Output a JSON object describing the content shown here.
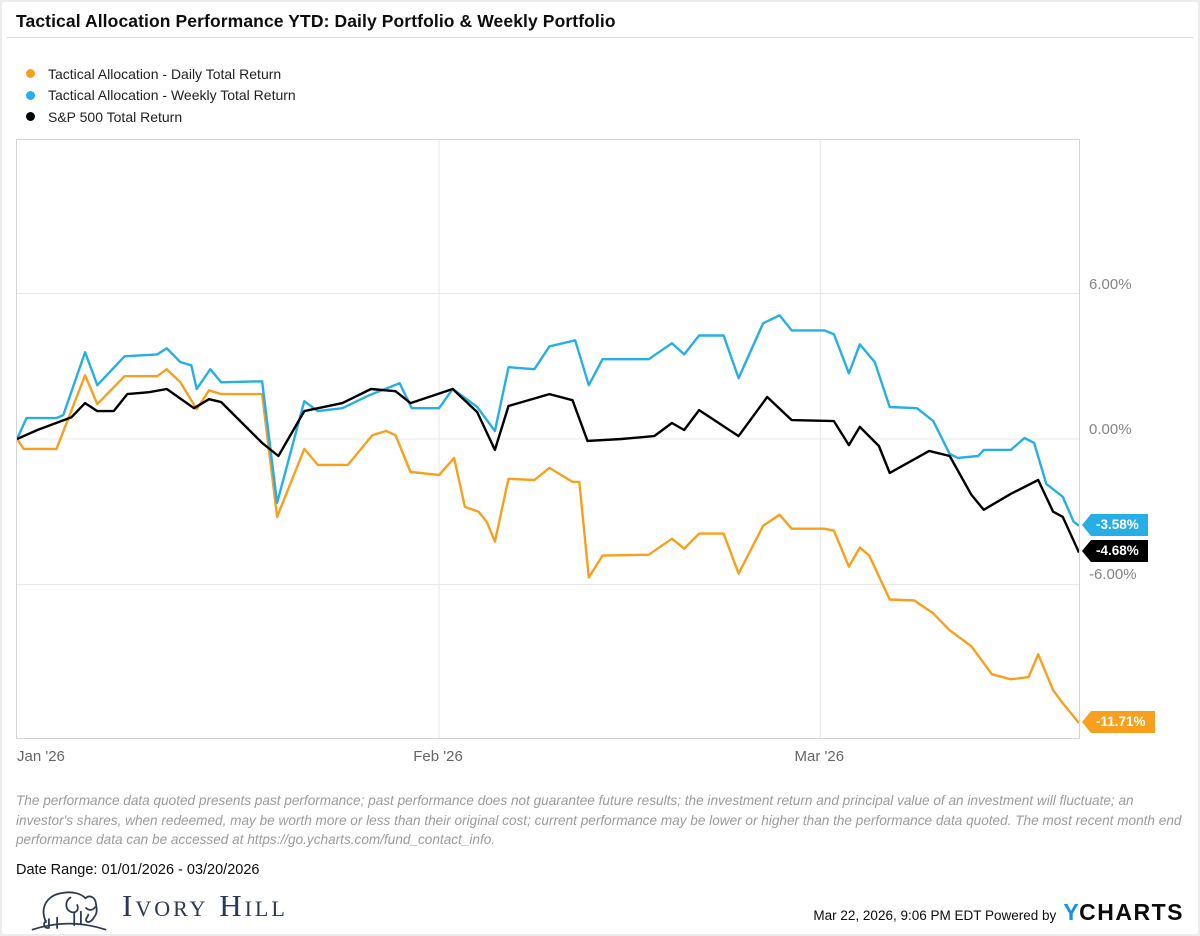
{
  "title": "Tactical Allocation Performance YTD: Daily Portfolio & Weekly Portfolio",
  "chart_data": {
    "type": "line",
    "x_axis": {
      "domain_days": [
        0,
        78
      ],
      "month_gridline_days": [
        31,
        59
      ],
      "labels": [
        {
          "label": "Jan '26",
          "day": 0,
          "align": "left"
        },
        {
          "label": "Feb '26",
          "day": 31,
          "align": "center"
        },
        {
          "label": "Mar '26",
          "day": 59,
          "align": "center"
        }
      ]
    },
    "y_axis": {
      "domain": [
        12.33,
        -12.33
      ],
      "ticks": [
        "6.00%",
        "0.00%",
        "-6.00%"
      ],
      "tick_values": [
        6,
        0,
        -6
      ],
      "unit": "percent"
    },
    "grid_color": "#e8e8e8",
    "series": [
      {
        "name": "Tactical Allocation - Daily Total Return",
        "color": "#F8A01E",
        "end_label": "-11.71%",
        "points": [
          [
            0,
            0
          ],
          [
            0.5,
            -0.41
          ],
          [
            2.9,
            -0.41
          ],
          [
            5,
            2.63
          ],
          [
            5.9,
            1.44
          ],
          [
            7.9,
            2.59
          ],
          [
            10.3,
            2.59
          ],
          [
            11,
            2.88
          ],
          [
            12,
            2.34
          ],
          [
            13.2,
            1.23
          ],
          [
            14.1,
            2.01
          ],
          [
            15,
            1.85
          ],
          [
            18,
            1.85
          ],
          [
            19.1,
            -3.21
          ],
          [
            21.1,
            -0.41
          ],
          [
            22.1,
            -1.07
          ],
          [
            24.3,
            -1.07
          ],
          [
            26.1,
            0.16
          ],
          [
            27.1,
            0.33
          ],
          [
            27.8,
            0.16
          ],
          [
            28.9,
            -1.36
          ],
          [
            31,
            -1.48
          ],
          [
            32.1,
            -0.78
          ],
          [
            32.9,
            -2.8
          ],
          [
            33.9,
            -3
          ],
          [
            34.5,
            -3.41
          ],
          [
            35.1,
            -4.23
          ],
          [
            36.1,
            -1.64
          ],
          [
            38,
            -1.69
          ],
          [
            39.1,
            -1.19
          ],
          [
            40.8,
            -1.77
          ],
          [
            41.3,
            -1.77
          ],
          [
            42,
            -5.71
          ],
          [
            43,
            -4.81
          ],
          [
            46.4,
            -4.77
          ],
          [
            48.1,
            -4.11
          ],
          [
            49,
            -4.52
          ],
          [
            50.1,
            -3.9
          ],
          [
            51.9,
            -3.9
          ],
          [
            53,
            -5.55
          ],
          [
            54.8,
            -3.58
          ],
          [
            56,
            -3.12
          ],
          [
            56.9,
            -3.7
          ],
          [
            59.3,
            -3.7
          ],
          [
            60,
            -3.78
          ],
          [
            61.1,
            -5.26
          ],
          [
            61.9,
            -4.48
          ],
          [
            62.6,
            -4.81
          ],
          [
            64.1,
            -6.62
          ],
          [
            65.9,
            -6.66
          ],
          [
            67.3,
            -7.19
          ],
          [
            68.5,
            -7.89
          ],
          [
            70.1,
            -8.55
          ],
          [
            71.6,
            -9.7
          ],
          [
            73,
            -9.91
          ],
          [
            74.3,
            -9.82
          ],
          [
            75,
            -8.88
          ],
          [
            76.1,
            -10.36
          ],
          [
            76.8,
            -10.89
          ],
          [
            78,
            -11.71
          ]
        ]
      },
      {
        "name": "Tactical Allocation - Weekly Total Return",
        "color": "#27AFE5",
        "end_label": "-3.58%",
        "points": [
          [
            0,
            0
          ],
          [
            0.7,
            0.86
          ],
          [
            2.9,
            0.86
          ],
          [
            3.4,
            0.99
          ],
          [
            5,
            3.58
          ],
          [
            5.9,
            2.22
          ],
          [
            7.9,
            3.41
          ],
          [
            10.3,
            3.49
          ],
          [
            11,
            3.74
          ],
          [
            12,
            3.17
          ],
          [
            12.8,
            3.04
          ],
          [
            13.2,
            2.06
          ],
          [
            14.2,
            2.88
          ],
          [
            15,
            2.34
          ],
          [
            18,
            2.38
          ],
          [
            19.1,
            -2.63
          ],
          [
            21.1,
            1.56
          ],
          [
            22.1,
            1.15
          ],
          [
            23.9,
            1.27
          ],
          [
            25.9,
            1.81
          ],
          [
            28.1,
            2.3
          ],
          [
            29,
            1.27
          ],
          [
            31,
            1.27
          ],
          [
            32,
            2.06
          ],
          [
            33.8,
            1.32
          ],
          [
            35.1,
            0.33
          ],
          [
            36.1,
            2.96
          ],
          [
            38,
            2.88
          ],
          [
            39.1,
            3.82
          ],
          [
            41,
            4.07
          ],
          [
            42,
            2.22
          ],
          [
            43,
            3.29
          ],
          [
            46.4,
            3.29
          ],
          [
            48.1,
            3.95
          ],
          [
            49,
            3.49
          ],
          [
            50.1,
            4.27
          ],
          [
            51.9,
            4.27
          ],
          [
            53,
            2.51
          ],
          [
            54.8,
            4.77
          ],
          [
            56,
            5.1
          ],
          [
            56.9,
            4.48
          ],
          [
            59.3,
            4.48
          ],
          [
            60,
            4.32
          ],
          [
            61.1,
            2.71
          ],
          [
            61.9,
            3.9
          ],
          [
            63,
            3.17
          ],
          [
            64.1,
            1.32
          ],
          [
            66.1,
            1.27
          ],
          [
            67.3,
            0.74
          ],
          [
            68.5,
            -0.62
          ],
          [
            69.1,
            -0.78
          ],
          [
            70.6,
            -0.7
          ],
          [
            71,
            -0.45
          ],
          [
            73,
            -0.45
          ],
          [
            74,
            0.04
          ],
          [
            74.7,
            -0.16
          ],
          [
            75.6,
            -1.85
          ],
          [
            76.8,
            -2.38
          ],
          [
            77.6,
            -3.41
          ],
          [
            78,
            -3.58
          ]
        ]
      },
      {
        "name": "S&P 500 Total Return",
        "color": "#000000",
        "end_label": "-4.68%",
        "points": [
          [
            0,
            0
          ],
          [
            1.5,
            0.37
          ],
          [
            4,
            0.9
          ],
          [
            5,
            1.48
          ],
          [
            5.9,
            1.15
          ],
          [
            7.1,
            1.15
          ],
          [
            8.1,
            1.85
          ],
          [
            9.7,
            1.93
          ],
          [
            11,
            2.06
          ],
          [
            13,
            1.27
          ],
          [
            14.1,
            1.64
          ],
          [
            15,
            1.52
          ],
          [
            18,
            -0.16
          ],
          [
            19.2,
            -0.7
          ],
          [
            21.1,
            1.15
          ],
          [
            23.9,
            1.48
          ],
          [
            26,
            2.06
          ],
          [
            27.8,
            1.97
          ],
          [
            28.9,
            1.48
          ],
          [
            32,
            2.06
          ],
          [
            33.8,
            1.11
          ],
          [
            35.1,
            -0.45
          ],
          [
            36.1,
            1.36
          ],
          [
            39.1,
            1.85
          ],
          [
            40.8,
            1.6
          ],
          [
            41.9,
            -0.08
          ],
          [
            44.4,
            0
          ],
          [
            46.8,
            0.12
          ],
          [
            48.1,
            0.66
          ],
          [
            49,
            0.37
          ],
          [
            50.1,
            1.19
          ],
          [
            53,
            0.12
          ],
          [
            55.1,
            1.73
          ],
          [
            56.9,
            0.78
          ],
          [
            60,
            0.74
          ],
          [
            61.1,
            -0.25
          ],
          [
            61.9,
            0.5
          ],
          [
            63.3,
            -0.29
          ],
          [
            64.1,
            -1.4
          ],
          [
            67,
            -0.49
          ],
          [
            68.5,
            -0.7
          ],
          [
            70.1,
            -2.3
          ],
          [
            71,
            -2.92
          ],
          [
            73,
            -2.26
          ],
          [
            75,
            -1.69
          ],
          [
            76.1,
            -3
          ],
          [
            76.8,
            -3.21
          ],
          [
            78,
            -4.68
          ]
        ]
      }
    ],
    "title": "Tactical Allocation Performance YTD: Daily Portfolio & Weekly Portfolio",
    "legend_position": "top-left",
    "grid": true
  },
  "disclaimer": "The performance data quoted presents past performance; past performance does not guarantee future results; the investment return and principal value of an investment will fluctuate; an investor's shares, when redeemed, may be worth more or less than their original cost; current performance may be lower or higher than the performance data quoted. The most recent month end performance data can be accessed at https://go.ycharts.com/fund_contact_info.",
  "footer": {
    "date_range": "Date Range: 01/01/2026 - 03/20/2026",
    "brand_name": "Ivory Hill",
    "brand_icon": "elephant-icon",
    "timestamp": "Mar 22, 2026, 9:06 PM EDT",
    "powered_by": "Powered by",
    "ycharts_logo_y": "Y",
    "ycharts_logo_charts": "CHARTS"
  }
}
